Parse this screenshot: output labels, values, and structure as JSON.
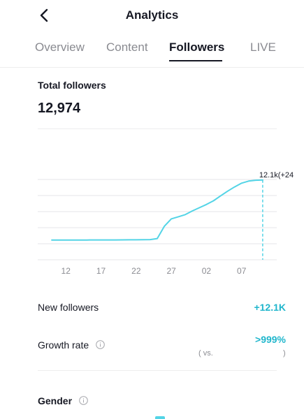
{
  "header": {
    "title": "Analytics"
  },
  "tabs": [
    {
      "label": "Overview"
    },
    {
      "label": "Content"
    },
    {
      "label": "Followers"
    },
    {
      "label": "LIVE"
    }
  ],
  "total_followers": {
    "label": "Total followers",
    "value": "12,974"
  },
  "chart_data": {
    "type": "line",
    "x_tick_labels": [
      "12",
      "17",
      "22",
      "27",
      "02",
      "07"
    ],
    "x": [
      10,
      11,
      12,
      13,
      14,
      15,
      16,
      17,
      18,
      19,
      20,
      21,
      22,
      23,
      24,
      25,
      26,
      27,
      28,
      29,
      30,
      31,
      32,
      33,
      34,
      35,
      36,
      37,
      38,
      39,
      40
    ],
    "values": [
      820,
      820,
      825,
      830,
      830,
      830,
      835,
      835,
      840,
      845,
      850,
      860,
      870,
      880,
      900,
      1100,
      3400,
      4800,
      5200,
      5600,
      6300,
      6900,
      7500,
      8200,
      9100,
      10000,
      10800,
      11500,
      11900,
      12050,
      12100
    ],
    "ylim": [
      0,
      12200
    ],
    "grid": true,
    "annotation": "12.1k(+24"
  },
  "stats": {
    "new_followers_label": "New followers",
    "new_followers_value": "+12.1K",
    "growth_rate_label": "Growth rate",
    "growth_rate_value": ">999%",
    "vs_text": "( vs.",
    "vs_close": ")"
  },
  "gender": {
    "label": "Gender"
  },
  "colors": {
    "accent": "#20b6cc",
    "line": "#53d4e6",
    "text": "#161823",
    "muted": "#8a8b91"
  }
}
